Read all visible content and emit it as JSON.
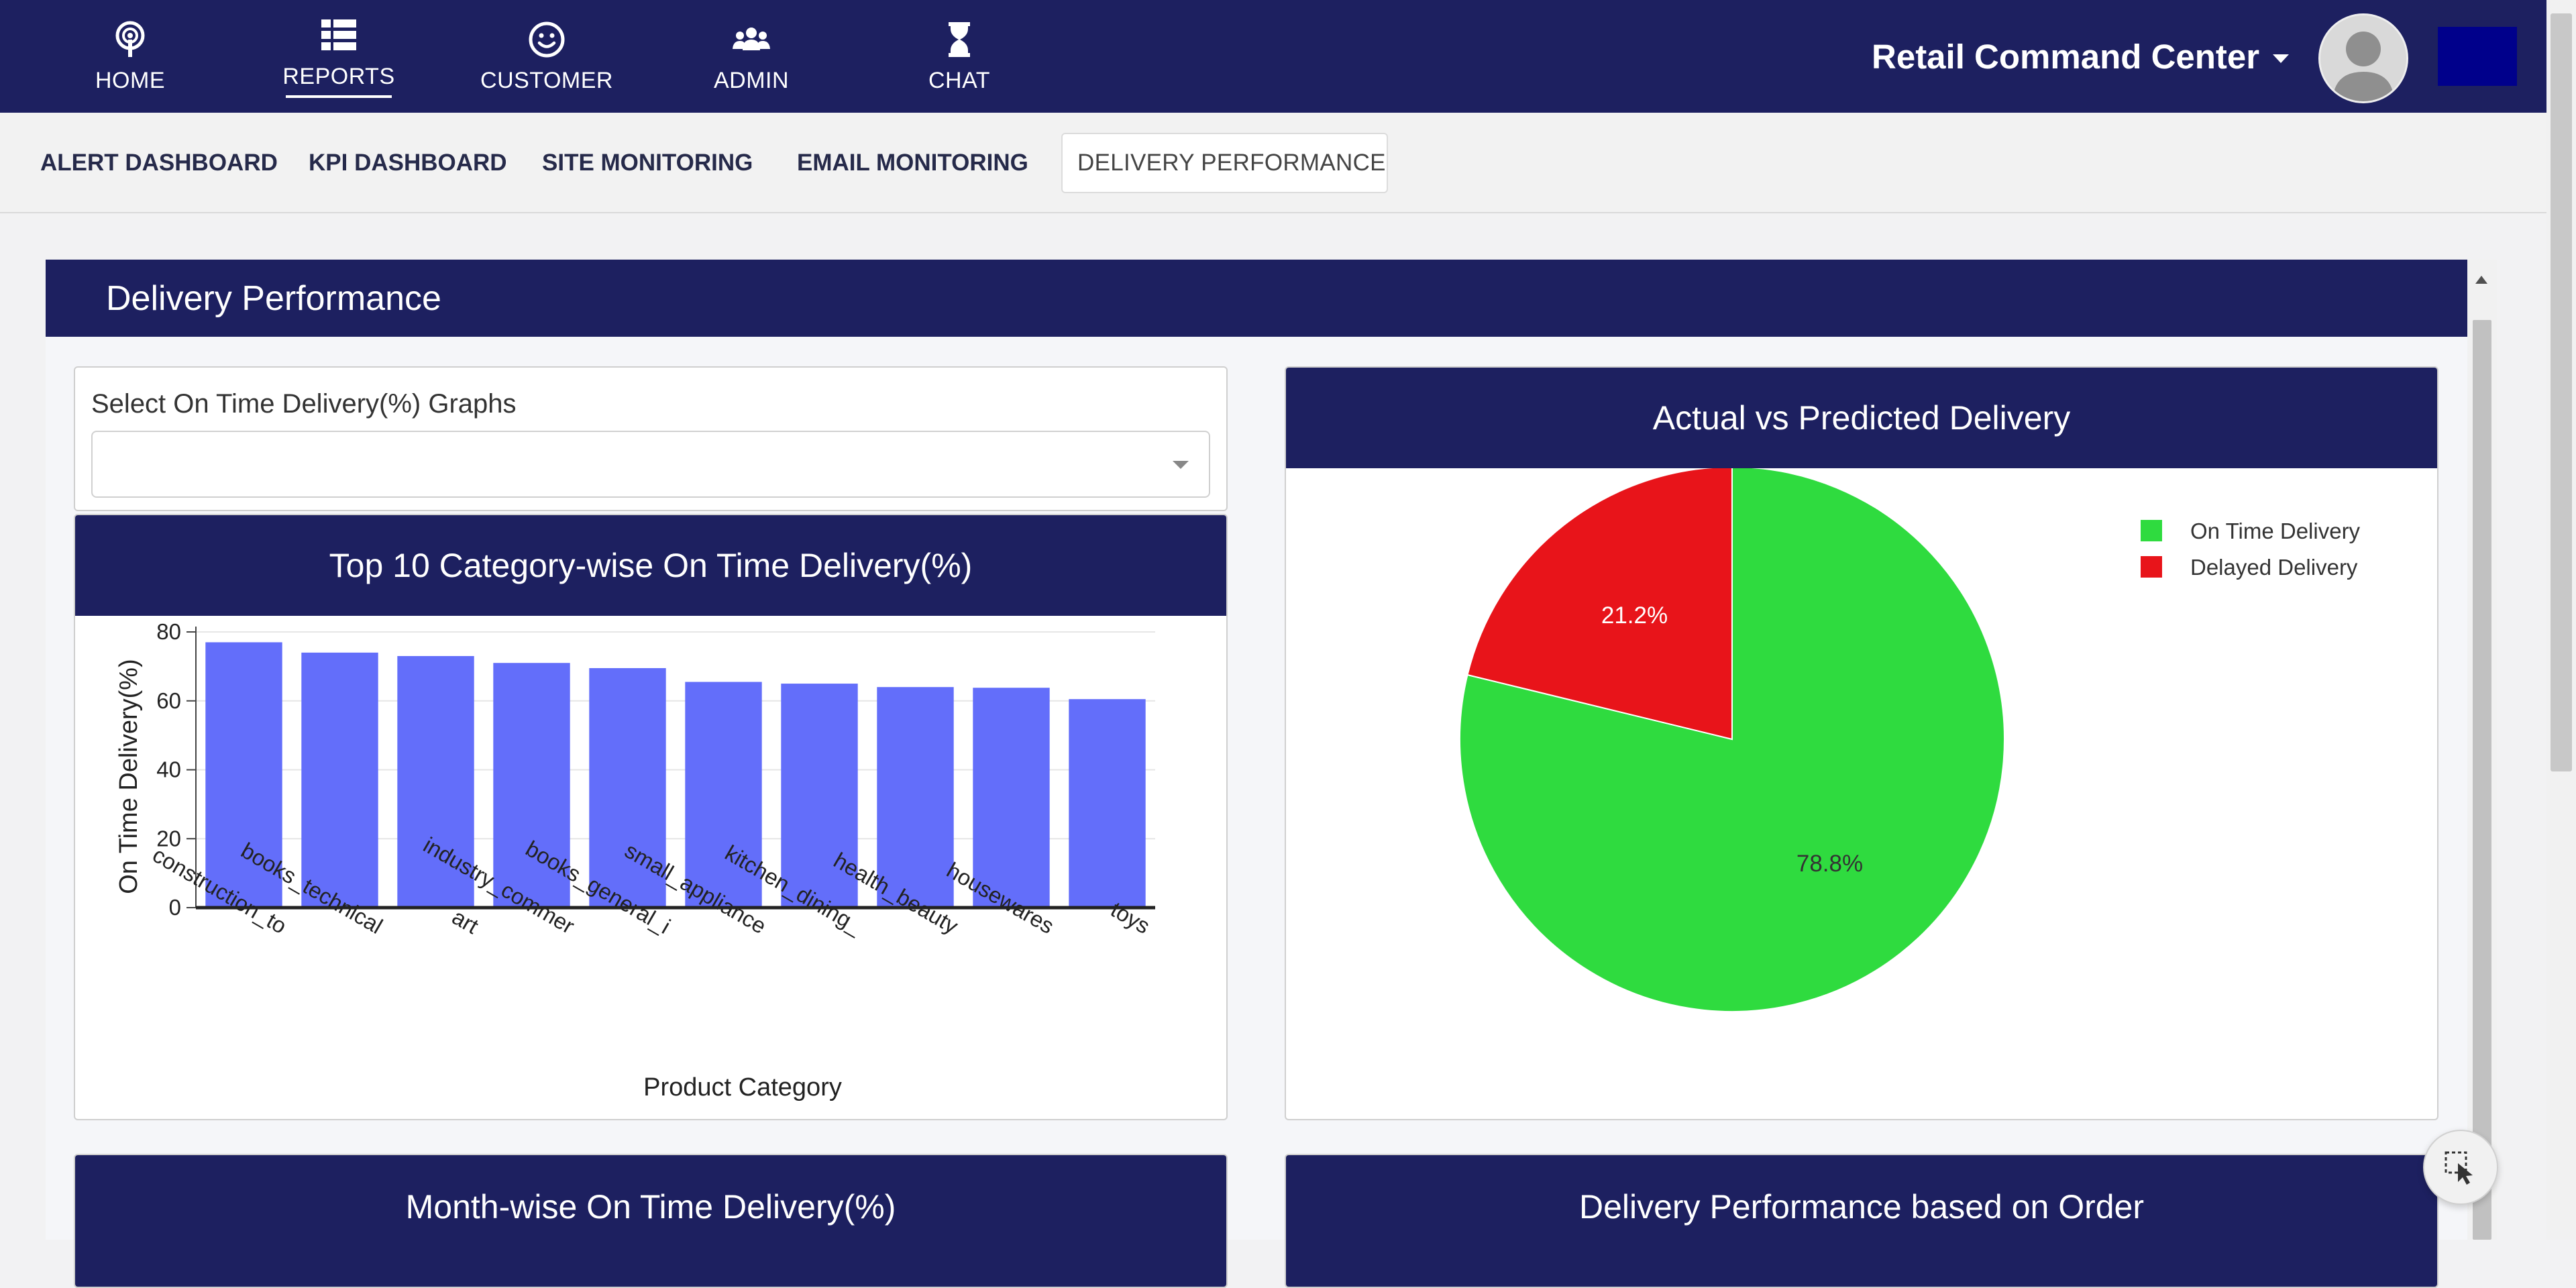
{
  "nav": {
    "items": [
      {
        "label": "HOME",
        "icon": "broadcast-icon"
      },
      {
        "label": "REPORTS",
        "icon": "list-icon"
      },
      {
        "label": "CUSTOMER",
        "icon": "smile-icon"
      },
      {
        "label": "ADMIN",
        "icon": "users-icon"
      },
      {
        "label": "CHAT",
        "icon": "hourglass-icon"
      }
    ],
    "active": "REPORTS",
    "brand": "Retail Command Center"
  },
  "subnav": {
    "tabs": [
      "ALERT DASHBOARD",
      "KPI DASHBOARD",
      "SITE MONITORING",
      "EMAIL MONITORING",
      "DELIVERY PERFORMANCE"
    ],
    "active": "DELIVERY PERFORMANCE"
  },
  "page": {
    "title": "Delivery Performance",
    "select": {
      "label": "Select On Time Delivery(%) Graphs",
      "value": ""
    }
  },
  "cards": {
    "category": {
      "title": "Top 10 Category-wise On Time Delivery(%)"
    },
    "pie": {
      "title": "Actual vs Predicted Delivery"
    },
    "month": {
      "title": "Month-wise On Time Delivery(%)"
    },
    "order": {
      "title": "Delivery Performance based on Order"
    }
  },
  "colors": {
    "navy": "#1d2060",
    "bar": "#636efa",
    "on_time": "#2fdb3f",
    "delayed": "#e8141a"
  },
  "chart_data": [
    {
      "type": "bar",
      "title": "Top 10 Category-wise On Time Delivery(%)",
      "xlabel": "Product Category",
      "ylabel": "On Time Delivery(%)",
      "ylim": [
        0,
        80
      ],
      "yticks": [
        0,
        20,
        40,
        60,
        80
      ],
      "grid": true,
      "categories": [
        "construction_to",
        "books_technical",
        "art",
        "industry_commer",
        "books_general_i",
        "small_appliance",
        "kitchen_dining_",
        "health_beauty",
        "housewares",
        "toys"
      ],
      "values": [
        77,
        74,
        73,
        71,
        69.5,
        65.5,
        65,
        64,
        63.8,
        60.5
      ]
    },
    {
      "type": "pie",
      "title": "Actual vs Predicted Delivery",
      "legend": "top-right",
      "labels": [
        "On Time Delivery",
        "Delayed Delivery"
      ],
      "values": [
        78.8,
        21.2
      ],
      "value_labels": [
        "78.8%",
        "21.2%"
      ]
    }
  ]
}
